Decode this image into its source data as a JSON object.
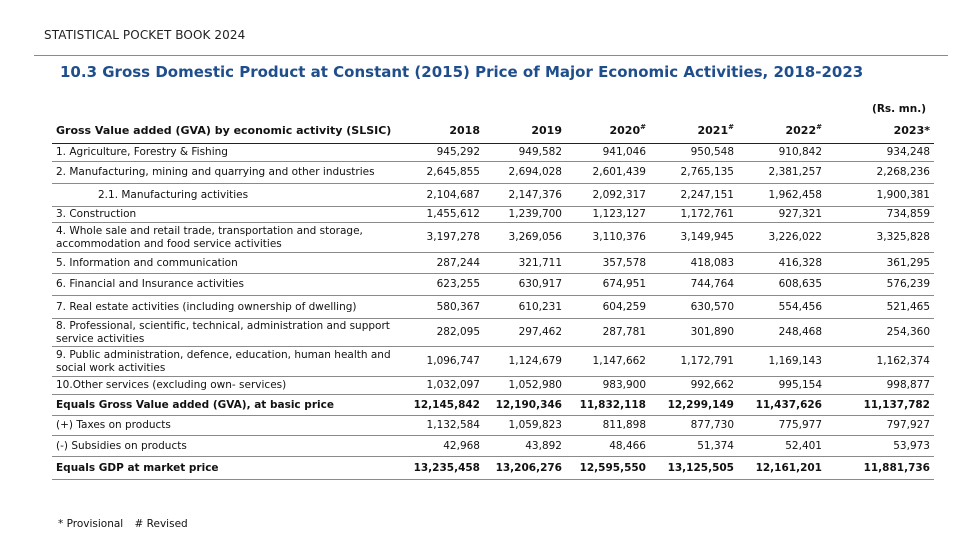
{
  "header": "STATISTICAL POCKET BOOK 2024",
  "title": "10.3 Gross Domestic Product at Constant (2015) Price of Major Economic Activities, 2018-2023",
  "units": "(Rs. mn.)",
  "columns": {
    "label": "Gross Value added (GVA) by economic activity (SLSIC)",
    "years": [
      {
        "year": "2018",
        "mark": ""
      },
      {
        "year": "2019",
        "mark": ""
      },
      {
        "year": "2020",
        "mark": "#"
      },
      {
        "year": "2021",
        "mark": "#"
      },
      {
        "year": "2022",
        "mark": "#"
      },
      {
        "year": "2023",
        "mark": "*"
      }
    ]
  },
  "rows": [
    {
      "label": "1.  Agriculture, Forestry & Fishing",
      "values": [
        "945,292",
        "949,582",
        "941,046",
        "950,548",
        "910,842",
        "934,248"
      ],
      "bold": false,
      "indent": false,
      "h": 18
    },
    {
      "label": "2. Manufacturing, mining and quarrying and other industries",
      "values": [
        "2,645,855",
        "2,694,028",
        "2,601,439",
        "2,765,135",
        "2,381,257",
        "2,268,236"
      ],
      "bold": false,
      "indent": false,
      "h": 22
    },
    {
      "label": "2.1. Manufacturing activities",
      "values": [
        "2,104,687",
        "2,147,376",
        "2,092,317",
        "2,247,151",
        "1,962,458",
        "1,900,381"
      ],
      "bold": false,
      "indent": true,
      "h": 23
    },
    {
      "label": "3. Construction",
      "values": [
        "1,455,612",
        "1,239,700",
        "1,123,127",
        "1,172,761",
        "927,321",
        "734,859"
      ],
      "bold": false,
      "indent": false,
      "h": 16
    },
    {
      "label": "4. Whole sale and retail trade, transportation and storage, accommodation and food service activities",
      "values": [
        "3,197,278",
        "3,269,056",
        "3,110,376",
        "3,149,945",
        "3,226,022",
        "3,325,828"
      ],
      "bold": false,
      "indent": false,
      "h": 30
    },
    {
      "label": "5. Information and communication",
      "values": [
        "287,244",
        "321,711",
        "357,578",
        "418,083",
        "416,328",
        "361,295"
      ],
      "bold": false,
      "indent": false,
      "h": 21
    },
    {
      "label": "6. Financial and Insurance activities",
      "values": [
        "623,255",
        "630,917",
        "674,951",
        "744,764",
        "608,635",
        "576,239"
      ],
      "bold": false,
      "indent": false,
      "h": 22
    },
    {
      "label": "7. Real estate activities (including ownership of dwelling)",
      "values": [
        "580,367",
        "610,231",
        "604,259",
        "630,570",
        "554,456",
        "521,465"
      ],
      "bold": false,
      "indent": false,
      "h": 23
    },
    {
      "label": "8. Professional, scientific, technical, administration and support service activities",
      "values": [
        "282,095",
        "297,462",
        "287,781",
        "301,890",
        "248,468",
        "254,360"
      ],
      "bold": false,
      "indent": false,
      "h": 28
    },
    {
      "label": "9. Public administration, defence, education, human health and social work activities",
      "values": [
        "1,096,747",
        "1,124,679",
        "1,147,662",
        "1,172,791",
        "1,169,143",
        "1,162,374"
      ],
      "bold": false,
      "indent": false,
      "h": 30
    },
    {
      "label": "10.Other services (excluding own- services)",
      "values": [
        "1,032,097",
        "1,052,980",
        "983,900",
        "992,662",
        "995,154",
        "998,877"
      ],
      "bold": false,
      "indent": false,
      "h": 18
    },
    {
      "label": "Equals Gross Value added (GVA), at basic price",
      "values": [
        "12,145,842",
        "12,190,346",
        "11,832,118",
        "12,299,149",
        "11,437,626",
        "11,137,782"
      ],
      "bold": true,
      "indent": false,
      "h": 21
    },
    {
      "label": "(+) Taxes on products",
      "values": [
        "1,132,584",
        "1,059,823",
        "811,898",
        "877,730",
        "775,977",
        "797,927"
      ],
      "bold": false,
      "indent": false,
      "h": 20
    },
    {
      "label": "(-) Subsidies on products",
      "values": [
        "42,968",
        "43,892",
        "48,466",
        "51,374",
        "52,401",
        "53,973"
      ],
      "bold": false,
      "indent": false,
      "h": 21
    },
    {
      "label": "Equals GDP at market price",
      "values": [
        "13,235,458",
        "13,206,276",
        "12,595,550",
        "13,125,505",
        "12,161,201",
        "11,881,736"
      ],
      "bold": true,
      "indent": false,
      "h": 23
    }
  ],
  "footnotes": [
    "* Provisional",
    "# Revised"
  ]
}
